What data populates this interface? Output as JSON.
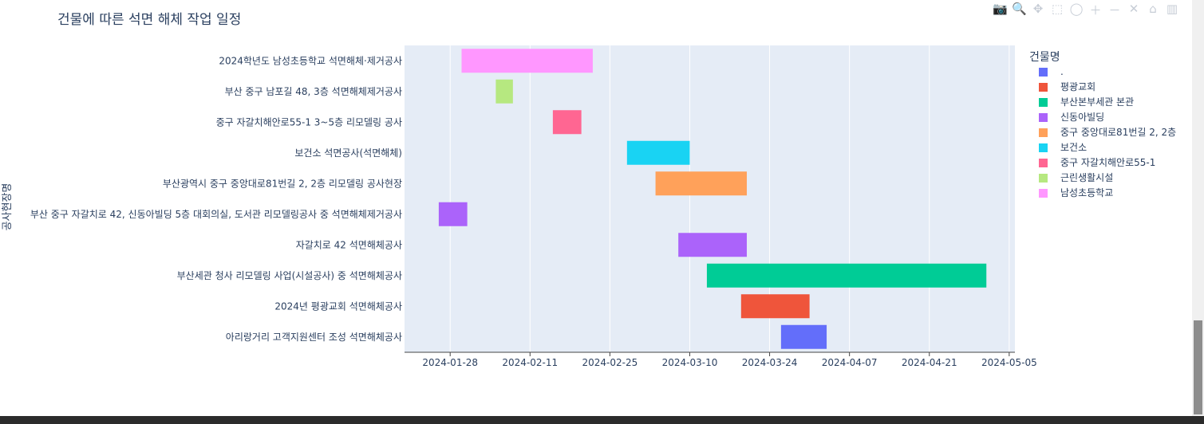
{
  "title": "건물에 따른 석면 해체 작업 일정",
  "modebar": [
    {
      "name": "camera-icon",
      "glyph": "📷"
    },
    {
      "name": "zoom-icon",
      "glyph": "🔍"
    },
    {
      "name": "pan-icon",
      "glyph": "✥"
    },
    {
      "name": "box-select-icon",
      "glyph": "⬚"
    },
    {
      "name": "lasso-select-icon",
      "glyph": "◯"
    },
    {
      "name": "zoom-in-icon",
      "glyph": "＋"
    },
    {
      "name": "zoom-out-icon",
      "glyph": "－"
    },
    {
      "name": "autoscale-icon",
      "glyph": "✕"
    },
    {
      "name": "home-icon",
      "glyph": "⌂"
    },
    {
      "name": "plotly-logo-icon",
      "glyph": "▥"
    }
  ],
  "chart_data": {
    "type": "bar",
    "orientation": "horizontal-timeline",
    "title": "건물에 따른 석면 해체 작업 일정",
    "xlabel": "",
    "ylabel": "공사현장명",
    "x_range": [
      "2024-01-20",
      "2024-05-06"
    ],
    "x_ticks": [
      "2024-01-28",
      "2024-02-11",
      "2024-02-25",
      "2024-03-10",
      "2024-03-24",
      "2024-04-07",
      "2024-04-21",
      "2024-05-05"
    ],
    "grid": true,
    "legend_title": "건물명",
    "legend_position": "right",
    "legend": [
      {
        "name": ".",
        "color": "#636efa"
      },
      {
        "name": "평광교회",
        "color": "#ef553b"
      },
      {
        "name": "부산본부세관 본관",
        "color": "#00cc96"
      },
      {
        "name": "신동아빌딩",
        "color": "#ab63fa"
      },
      {
        "name": "중구 중앙대로81번길 2, 2층",
        "color": "#ffa15a"
      },
      {
        "name": "보건소",
        "color": "#19d3f3"
      },
      {
        "name": "중구 자갈치해안로55-1",
        "color": "#ff6692"
      },
      {
        "name": "근린생활시설",
        "color": "#b6e880"
      },
      {
        "name": "남성초등학교",
        "color": "#ff97ff"
      }
    ],
    "tasks": [
      {
        "label": "2024학년도 남성초등학교 석면해체·제거공사",
        "start": "2024-01-30",
        "end": "2024-02-22",
        "color": "#ff97ff"
      },
      {
        "label": "부산 중구 남포길 48, 3층 석면해체제거공사",
        "start": "2024-02-05",
        "end": "2024-02-08",
        "color": "#b6e880"
      },
      {
        "label": "중구 자갈치해안로55-1 3~5층 리모델링 공사",
        "start": "2024-02-15",
        "end": "2024-02-20",
        "color": "#ff6692"
      },
      {
        "label": "보건소 석면공사(석면해체)",
        "start": "2024-02-28",
        "end": "2024-03-10",
        "color": "#19d3f3"
      },
      {
        "label": "부산광역시 중구 중앙대로81번길 2, 2층 리모델링 공사현장",
        "start": "2024-03-04",
        "end": "2024-03-20",
        "color": "#ffa15a"
      },
      {
        "label": "부산 중구 자갈치로 42, 신동아빌딩 5층 대회의실, 도서관 리모델링공사 중 석면해체제거공사",
        "start": "2024-01-26",
        "end": "2024-01-31",
        "color": "#ab63fa"
      },
      {
        "label": "자갈치로 42 석면해체공사",
        "start": "2024-03-08",
        "end": "2024-03-20",
        "color": "#ab63fa"
      },
      {
        "label": "부산세관 청사 리모델링 사업(시설공사) 중 석면해체공사",
        "start": "2024-03-13",
        "end": "2024-05-01",
        "color": "#00cc96"
      },
      {
        "label": "2024년 평광교회 석면해체공사",
        "start": "2024-03-19",
        "end": "2024-03-31",
        "color": "#ef553b"
      },
      {
        "label": "아리랑거리 고객지원센터 조성 석면해체공사",
        "start": "2024-03-26",
        "end": "2024-04-03",
        "color": "#636efa"
      }
    ]
  }
}
